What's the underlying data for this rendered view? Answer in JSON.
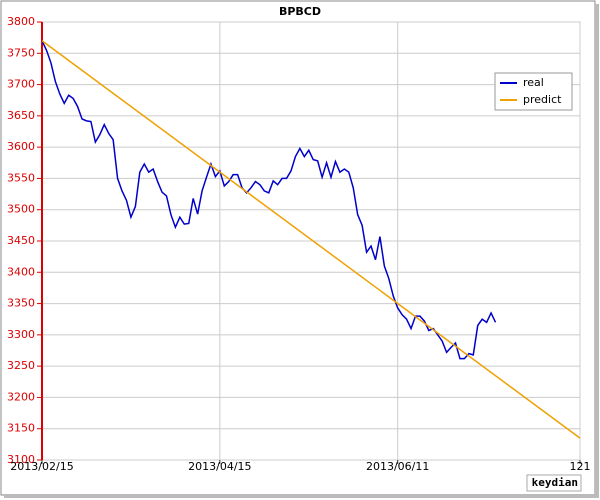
{
  "chart_data": {
    "type": "line",
    "title": "BPBCD",
    "credit": "keydian",
    "xlim": [
      0,
      121
    ],
    "ylim": [
      3100,
      3800
    ],
    "xticks": [
      {
        "value": 0,
        "label": "2013/02/15"
      },
      {
        "value": 40,
        "label": "2013/04/15"
      },
      {
        "value": 80,
        "label": "2013/06/11"
      },
      121
    ],
    "yticks": [
      3100,
      3150,
      3200,
      3250,
      3300,
      3350,
      3400,
      3450,
      3500,
      3550,
      3600,
      3650,
      3700,
      3750,
      3800
    ],
    "grid": true,
    "legend": "upper right",
    "series": [
      {
        "name": "real",
        "color": "#0000cc",
        "x": [
          0,
          1,
          2,
          3,
          4,
          5,
          6,
          7,
          8,
          9,
          10,
          11,
          12,
          13,
          14,
          15,
          16,
          17,
          18,
          19,
          20,
          21,
          22,
          23,
          24,
          25,
          26,
          27,
          28,
          29,
          30,
          31,
          32,
          33,
          34,
          35,
          36,
          37,
          38,
          39,
          40,
          41,
          42,
          43,
          44,
          45,
          46,
          47,
          48,
          49,
          50,
          51,
          52,
          53,
          54,
          55,
          56,
          57,
          58,
          59,
          60,
          61,
          62,
          63,
          64,
          65,
          66,
          67,
          68,
          69,
          70,
          71,
          72,
          73,
          74,
          75,
          76,
          77,
          78,
          79,
          80,
          81,
          82,
          83,
          84,
          85,
          86,
          87,
          88,
          89,
          90,
          91,
          92,
          93,
          94,
          95,
          96,
          97,
          98,
          99,
          100,
          101,
          102
        ],
        "values": [
          3770,
          3755,
          3735,
          3705,
          3685,
          3670,
          3683,
          3678,
          3665,
          3645,
          3642,
          3641,
          3608,
          3620,
          3636,
          3622,
          3612,
          3550,
          3530,
          3515,
          3488,
          3505,
          3560,
          3573,
          3560,
          3565,
          3545,
          3528,
          3522,
          3492,
          3472,
          3488,
          3477,
          3478,
          3518,
          3493,
          3530,
          3552,
          3573,
          3553,
          3562,
          3538,
          3545,
          3556,
          3556,
          3535,
          3527,
          3535,
          3545,
          3540,
          3530,
          3527,
          3546,
          3540,
          3550,
          3550,
          3562,
          3585,
          3598,
          3585,
          3595,
          3580,
          3578,
          3552,
          3575,
          3552,
          3577,
          3560,
          3565,
          3560,
          3535,
          3492,
          3475,
          3432,
          3442,
          3420,
          3457,
          3410,
          3390,
          3362,
          3343,
          3332,
          3325,
          3310,
          3330,
          3330,
          3322,
          3307,
          3310,
          3300,
          3290,
          3272,
          3280,
          3287,
          3262,
          3262,
          3270,
          3268,
          3315,
          3325,
          3320,
          3335,
          3320
        ]
      },
      {
        "name": "predict",
        "color": "#f0a000",
        "x": [
          0,
          121
        ],
        "values": [
          3770,
          3135
        ]
      }
    ]
  }
}
